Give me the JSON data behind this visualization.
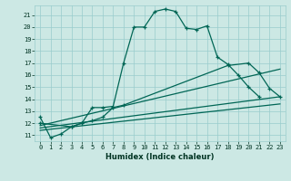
{
  "title": "",
  "xlabel": "Humidex (Indice chaleur)",
  "background_color": "#cce8e4",
  "grid_color": "#99cccc",
  "line_color": "#006655",
  "xlim": [
    -0.5,
    23.5
  ],
  "ylim": [
    10.5,
    21.8
  ],
  "yticks": [
    11,
    12,
    13,
    14,
    15,
    16,
    17,
    18,
    19,
    20,
    21
  ],
  "xticks": [
    0,
    1,
    2,
    3,
    4,
    5,
    6,
    7,
    8,
    9,
    10,
    11,
    12,
    13,
    14,
    15,
    16,
    17,
    18,
    19,
    20,
    21,
    22,
    23
  ],
  "line1_x": [
    0,
    1,
    2,
    3,
    4,
    5,
    6,
    7,
    8,
    9,
    10,
    11,
    12,
    13,
    14,
    15,
    16,
    17,
    18,
    19,
    20,
    21
  ],
  "line1_y": [
    12.5,
    10.8,
    11.1,
    11.7,
    12.0,
    13.3,
    13.3,
    13.4,
    17.0,
    20.0,
    20.0,
    21.3,
    21.5,
    21.3,
    19.9,
    19.8,
    20.1,
    17.5,
    16.9,
    16.0,
    15.0,
    14.2
  ],
  "line2_x": [
    0,
    3,
    4,
    5,
    6,
    7,
    8,
    18,
    20,
    21,
    22,
    23
  ],
  "line2_y": [
    12.0,
    11.7,
    12.0,
    12.2,
    12.5,
    13.3,
    13.5,
    16.8,
    17.0,
    16.2,
    14.9,
    14.2
  ],
  "line3_x": [
    0,
    23
  ],
  "line3_y": [
    11.8,
    16.5
  ],
  "line4_x": [
    0,
    23
  ],
  "line4_y": [
    11.6,
    14.2
  ],
  "line5_x": [
    0,
    23
  ],
  "line5_y": [
    11.4,
    13.6
  ]
}
